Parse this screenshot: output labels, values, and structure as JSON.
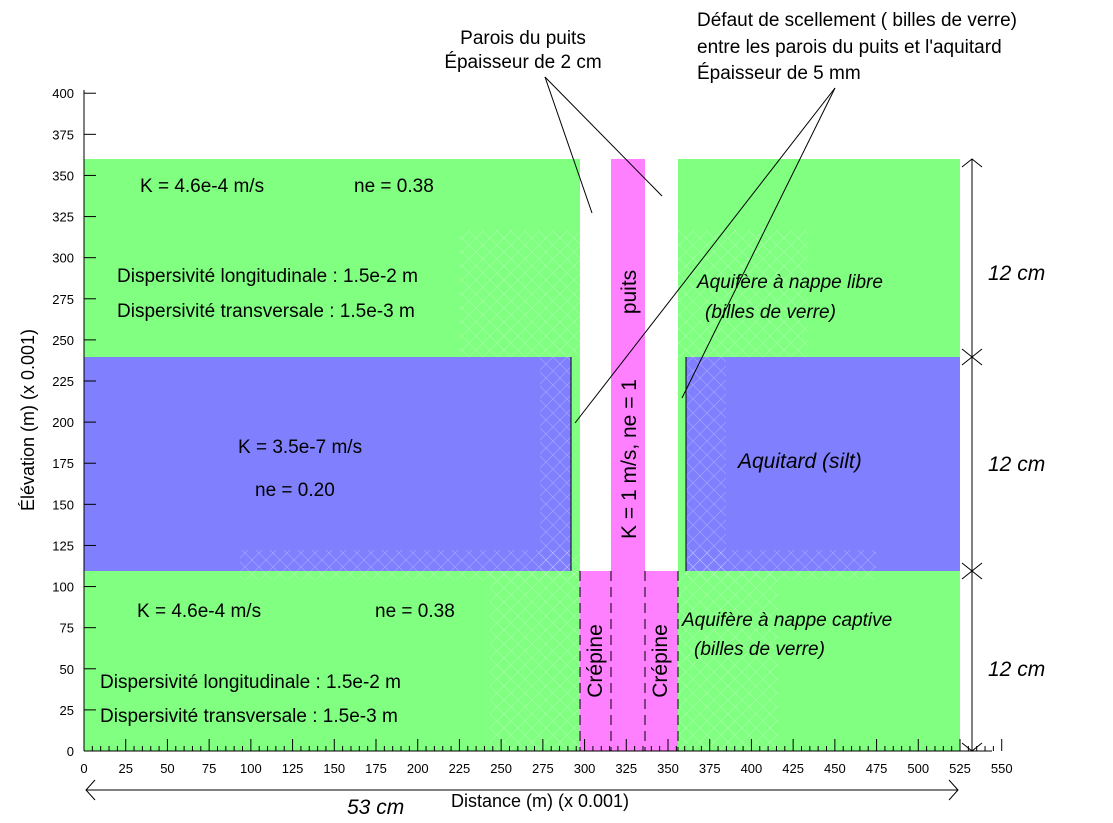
{
  "colors": {
    "aquifer": "#80ff80",
    "aquitard": "#8080ff",
    "well": "#ff80ff",
    "wall": "#ffffff",
    "mesh": "#d9d9d9"
  },
  "axes": {
    "xlabel": "Distance (m) (x 0.001)",
    "ylabel": "Élévation (m) (x 0.001)",
    "xticks": [
      0,
      25,
      50,
      75,
      100,
      125,
      150,
      175,
      200,
      225,
      250,
      275,
      300,
      325,
      350,
      375,
      400,
      425,
      450,
      475,
      500,
      525,
      550
    ],
    "yticks": [
      0,
      25,
      50,
      75,
      100,
      125,
      150,
      175,
      200,
      225,
      250,
      275,
      300,
      325,
      350,
      375,
      400
    ],
    "xrange": [
      0,
      550
    ],
    "yrange": [
      0,
      400
    ]
  },
  "annotations": {
    "wall_title": "Parois du puits",
    "wall_thickness": "Épaisseur de 2 cm",
    "seal_defect": "Défaut de scellement ( billes de verre)",
    "seal_between": "entre les parois du puits et l'aquitard",
    "seal_thickness": "Épaisseur de 5 mm"
  },
  "layers": {
    "unconfined": {
      "k": "K = 4.6e-4 m/s",
      "ne": "ne = 0.38",
      "disp_long": "Dispersivité longitudinale : 1.5e-2 m",
      "disp_trans": "Dispersivité transversale : 1.5e-3 m",
      "name": "Aquifère à nappe libre",
      "material": "(billes de verre)"
    },
    "aquitard": {
      "k": "K = 3.5e-7 m/s",
      "ne": "ne = 0.20",
      "name": "Aquitard  (silt)"
    },
    "confined": {
      "k": "K = 4.6e-4 m/s",
      "ne": "ne = 0.38",
      "disp_long": "Dispersivité longitudinale : 1.5e-2 m",
      "disp_trans": "Dispersivité transversale : 1.5e-3 m",
      "name": "Aquifère à nappe captive",
      "material": "(billes de verre)"
    }
  },
  "well": {
    "label": "puits",
    "props": "K = 1 m/s, ne = 1",
    "screen_left": "Crépine",
    "screen_right": "Crépine"
  },
  "dimensions": {
    "upper": "12 cm",
    "middle": "12 cm",
    "lower": "12 cm",
    "width": "53 cm"
  }
}
